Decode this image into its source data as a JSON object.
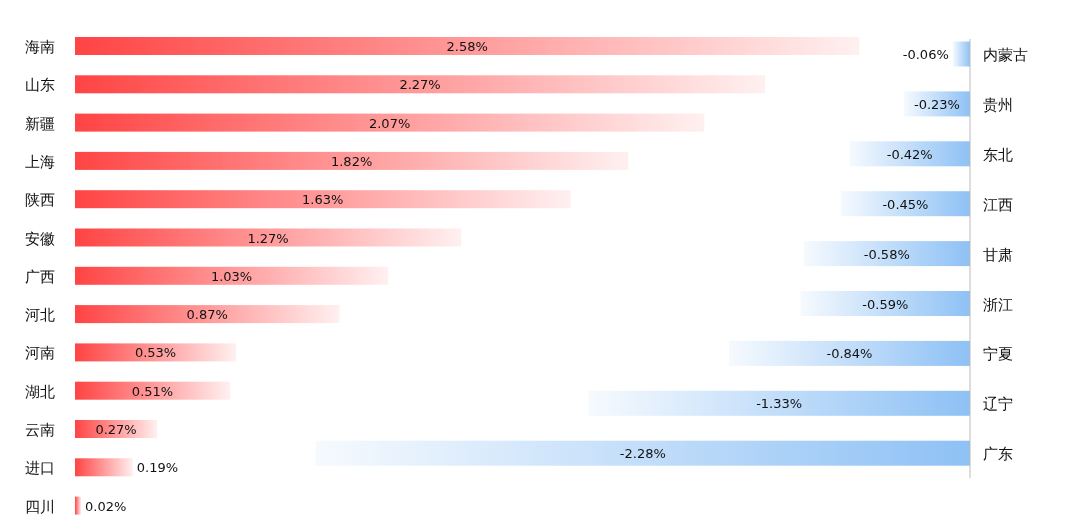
{
  "chart_data": [
    {
      "type": "bar",
      "orientation": "horizontal",
      "categories": [
        "海南",
        "山东",
        "新疆",
        "上海",
        "陕西",
        "安徽",
        "广西",
        "河北",
        "河南",
        "湖北",
        "云南",
        "进口",
        "四川"
      ],
      "series": [
        {
          "color": "#ff4444",
          "values": [
            2.58,
            2.27,
            2.07,
            1.82,
            1.63,
            1.27,
            1.03,
            0.87,
            0.53,
            0.51,
            0.27,
            0.19,
            0.02
          ],
          "value_labels": [
            "2.58%",
            "2.27%",
            "2.07%",
            "1.82%",
            "1.63%",
            "1.27%",
            "1.03%",
            "0.87%",
            "0.53%",
            "0.51%",
            "0.27%",
            "0.19%",
            "0.02%"
          ]
        }
      ]
    },
    {
      "type": "bar",
      "orientation": "horizontal",
      "categories": [
        "内蒙古",
        "贵州",
        "东北",
        "江西",
        "甘肃",
        "浙江",
        "宁夏",
        "辽宁",
        "广东"
      ],
      "series": [
        {
          "color": "#8ec1f5",
          "values": [
            -0.06,
            -0.23,
            -0.42,
            -0.45,
            -0.58,
            -0.59,
            -0.84,
            -1.33,
            -2.28
          ],
          "value_labels": [
            "-0.06%",
            "-0.23%",
            "-0.42%",
            "-0.45%",
            "-0.58%",
            "-0.59%",
            "-0.84%",
            "-1.33%",
            "-2.28%"
          ]
        }
      ]
    }
  ]
}
